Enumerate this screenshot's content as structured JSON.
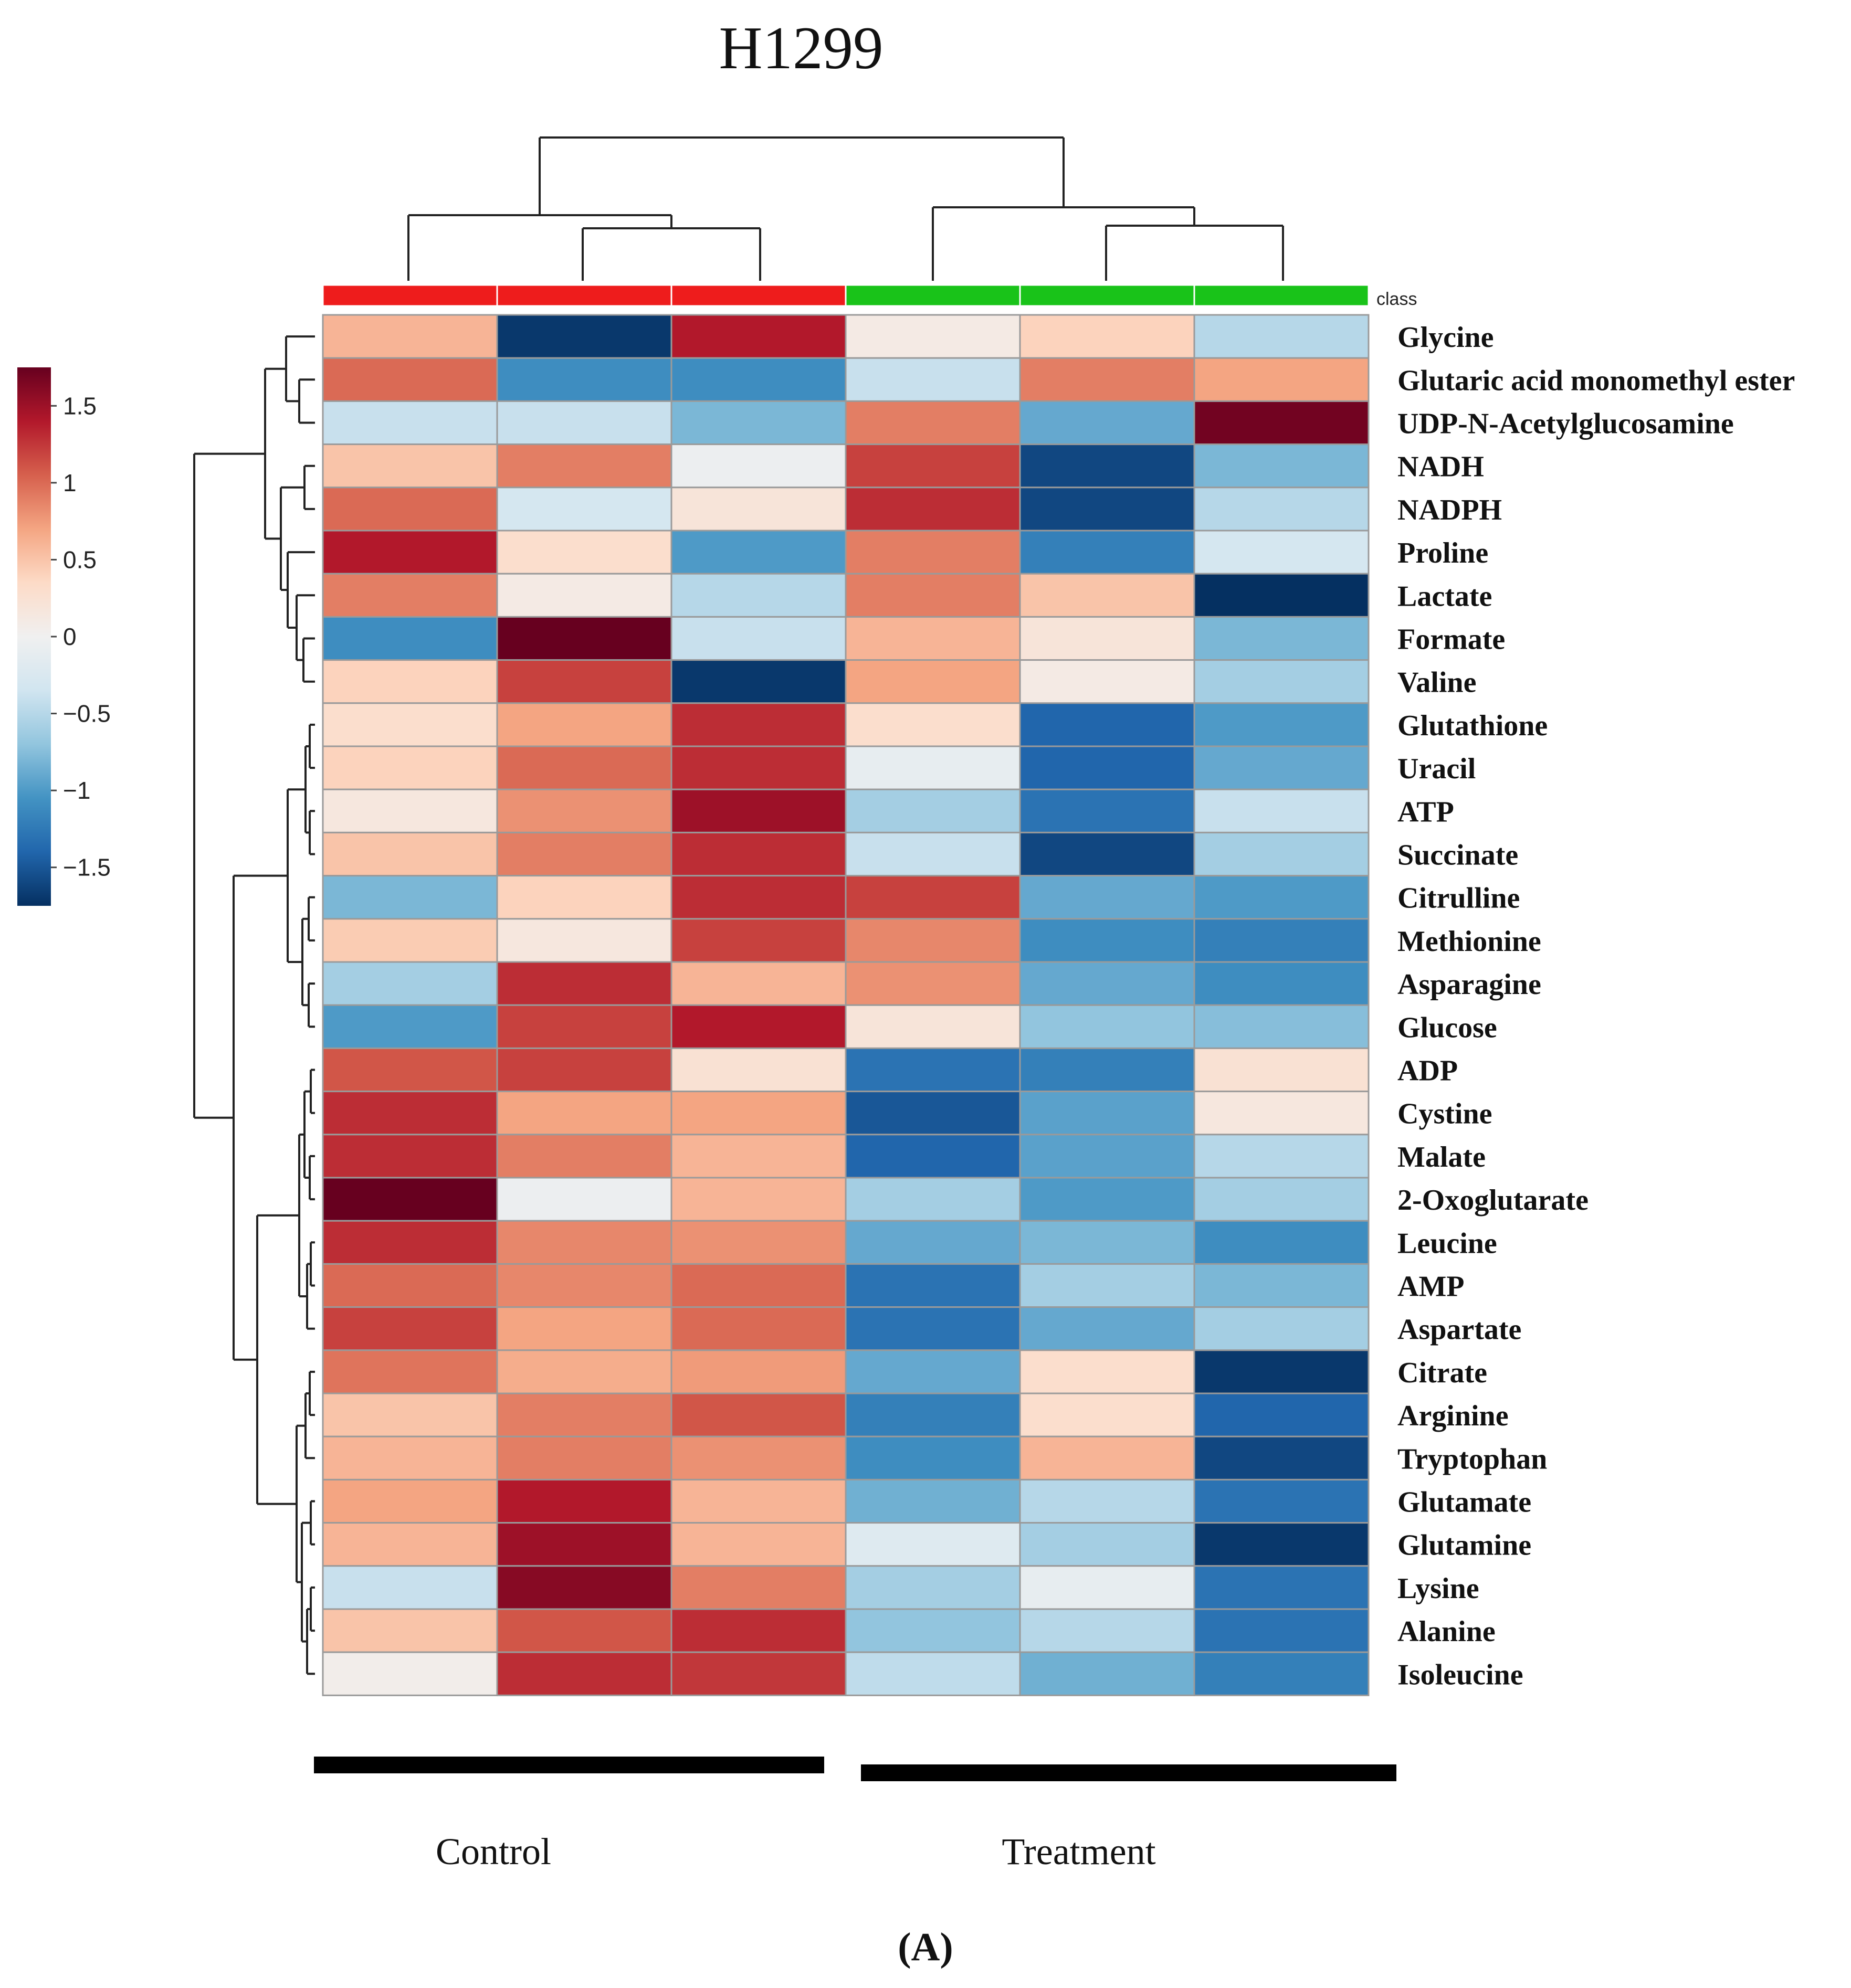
{
  "chart_data": {
    "type": "heatmap",
    "title": "H1299",
    "panel_label": "(A)",
    "class_label": "class",
    "groups": [
      {
        "name": "Control",
        "color": "#ee1c1c",
        "columns": 3
      },
      {
        "name": "Treatment",
        "color": "#19c319",
        "columns": 3
      }
    ],
    "legend": {
      "range": [
        -1.75,
        1.75
      ],
      "ticks": [
        1.5,
        1,
        0.5,
        0,
        -0.5,
        -1,
        -1.5
      ],
      "tick_labels": [
        "1.5",
        "1",
        "0.5",
        "0",
        "−0.5",
        "−1",
        "−1.5"
      ],
      "colors": [
        "#67001f",
        "#b2182b",
        "#d6604d",
        "#f4a582",
        "#fddbc7",
        "#f0f0f0",
        "#d1e5f0",
        "#92c5de",
        "#4393c3",
        "#2166ac",
        "#053061"
      ]
    },
    "rows": [
      "Glycine",
      "Glutaric acid monomethyl ester",
      "UDP-N-Acetylglucosamine",
      "NADH",
      "NADPH",
      "Proline",
      "Lactate",
      "Formate",
      "Valine",
      "Glutathione",
      "Uracil",
      "ATP",
      "Succinate",
      "Citrulline",
      "Methionine",
      "Asparagine",
      "Glucose",
      "ADP",
      "Cystine",
      "Malate",
      "2-Oxoglutarate",
      "Leucine",
      "AMP",
      "Aspartate",
      "Citrate",
      "Arginine",
      "Tryptophan",
      "Glutamate",
      "Glutamine",
      "Lysine",
      "Alanine",
      "Isoleucine"
    ],
    "values": [
      [
        0.6,
        -1.7,
        1.4,
        0.1,
        0.4,
        -0.5
      ],
      [
        1.0,
        -1.1,
        -1.1,
        -0.4,
        0.9,
        0.7
      ],
      [
        -0.4,
        -0.4,
        -0.8,
        0.9,
        -0.9,
        1.7
      ],
      [
        0.5,
        0.9,
        -0.05,
        1.2,
        -1.6,
        -0.8
      ],
      [
        1.0,
        -0.3,
        0.2,
        1.3,
        -1.6,
        -0.5
      ],
      [
        1.4,
        0.3,
        -1.0,
        0.9,
        -1.2,
        -0.3
      ],
      [
        0.9,
        0.1,
        -0.5,
        0.9,
        0.5,
        -1.8
      ],
      [
        -1.1,
        1.8,
        -0.4,
        0.6,
        0.2,
        -0.8
      ],
      [
        0.4,
        1.2,
        -1.7,
        0.7,
        0.1,
        -0.6
      ],
      [
        0.3,
        0.7,
        1.3,
        0.3,
        -1.4,
        -1.0
      ],
      [
        0.4,
        1.0,
        1.3,
        -0.1,
        -1.4,
        -0.9
      ],
      [
        0.15,
        0.8,
        1.5,
        -0.6,
        -1.3,
        -0.4
      ],
      [
        0.5,
        0.9,
        1.3,
        -0.4,
        -1.6,
        -0.6
      ],
      [
        -0.8,
        0.4,
        1.3,
        1.2,
        -0.9,
        -1.0
      ],
      [
        0.45,
        0.15,
        1.2,
        0.85,
        -1.1,
        -1.2
      ],
      [
        -0.6,
        1.3,
        0.6,
        0.8,
        -0.9,
        -1.1
      ],
      [
        -1.0,
        1.2,
        1.4,
        0.2,
        -0.7,
        -0.75
      ],
      [
        1.1,
        1.2,
        0.25,
        -1.3,
        -1.2,
        0.25
      ],
      [
        1.3,
        0.7,
        0.7,
        -1.5,
        -0.95,
        0.15
      ],
      [
        1.3,
        0.9,
        0.6,
        -1.4,
        -0.95,
        -0.5
      ],
      [
        1.9,
        -0.05,
        0.6,
        -0.6,
        -1.0,
        -0.6
      ],
      [
        1.3,
        0.85,
        0.8,
        -0.9,
        -0.8,
        -1.1
      ],
      [
        1.0,
        0.85,
        1.0,
        -1.3,
        -0.6,
        -0.8
      ],
      [
        1.2,
        0.7,
        1.0,
        -1.3,
        -0.9,
        -0.6
      ],
      [
        0.95,
        0.65,
        0.75,
        -0.9,
        0.3,
        -1.7
      ],
      [
        0.5,
        0.9,
        1.1,
        -1.2,
        0.3,
        -1.4
      ],
      [
        0.6,
        0.9,
        0.8,
        -1.1,
        0.6,
        -1.6
      ],
      [
        0.7,
        1.4,
        0.6,
        -0.85,
        -0.5,
        -1.3
      ],
      [
        0.6,
        1.5,
        0.6,
        -0.2,
        -0.6,
        -1.7
      ],
      [
        -0.4,
        1.6,
        0.9,
        -0.6,
        -0.1,
        -1.3
      ],
      [
        0.5,
        1.1,
        1.3,
        -0.7,
        -0.5,
        -1.3
      ],
      [
        0.05,
        1.3,
        1.25,
        -0.45,
        -0.85,
        -1.2
      ]
    ]
  }
}
